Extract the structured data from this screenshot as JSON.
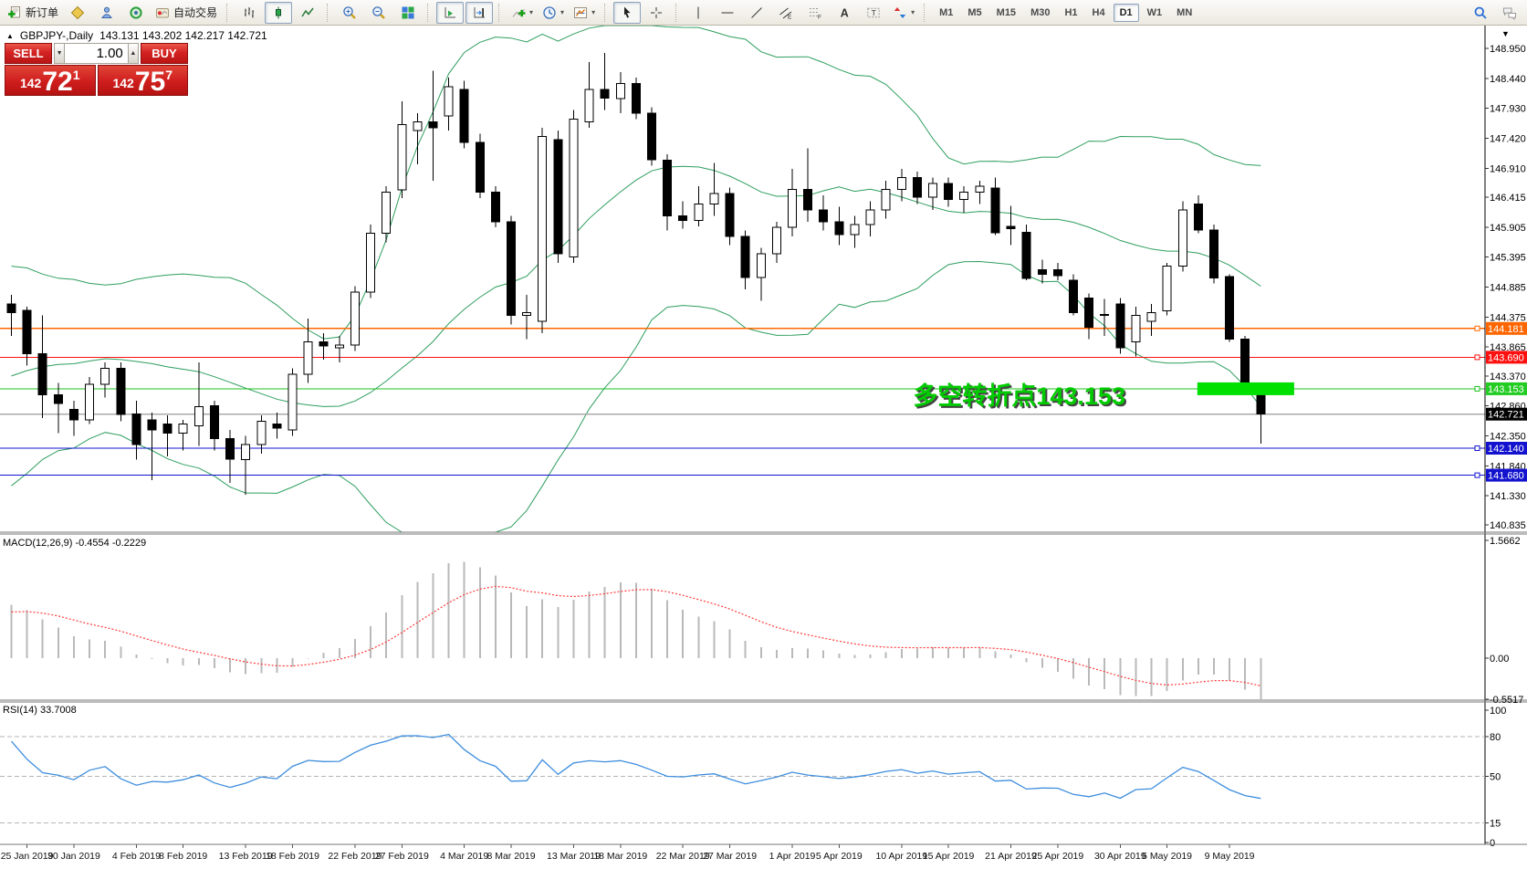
{
  "toolbar": {
    "caret_glyph": "▾",
    "groups": [
      {
        "items": [
          {
            "name": "new-order-button",
            "icon": "new-order-icon",
            "label": "新订单"
          },
          {
            "name": "metaeditor-button",
            "icon": "metaeditor-icon"
          },
          {
            "name": "profiles-button",
            "icon": "profile-icon"
          },
          {
            "name": "navigator-button",
            "icon": "navigator-icon"
          },
          {
            "name": "autotrading-button",
            "icon": "autotrading-icon",
            "label": "自动交易"
          }
        ]
      },
      {
        "items": [
          {
            "name": "bar-chart-button",
            "icon": "bar-chart-icon"
          },
          {
            "name": "candlestick-button",
            "icon": "candlestick-icon",
            "active": true
          },
          {
            "name": "line-chart-button",
            "icon": "line-chart-icon"
          }
        ]
      },
      {
        "items": [
          {
            "name": "zoom-in-button",
            "icon": "zoom-in-icon"
          },
          {
            "name": "zoom-out-button",
            "icon": "zoom-out-icon"
          },
          {
            "name": "tile-windows-button",
            "icon": "tile-windows-icon"
          }
        ]
      },
      {
        "items": [
          {
            "name": "auto-scroll-button",
            "icon": "auto-scroll-icon",
            "active": true
          },
          {
            "name": "chart-shift-button",
            "icon": "chart-shift-icon",
            "active": true
          }
        ]
      },
      {
        "items": [
          {
            "name": "indicators-button",
            "icon": "indicators-icon",
            "caret": true
          },
          {
            "name": "periods-button",
            "icon": "period-icon",
            "caret": true
          },
          {
            "name": "templates-button",
            "icon": "template-icon",
            "caret": true
          }
        ]
      },
      {
        "items": [
          {
            "name": "cursor-button",
            "icon": "cursor-icon",
            "active": true
          },
          {
            "name": "crosshair-button",
            "icon": "crosshair-icon"
          }
        ]
      },
      {
        "items": [
          {
            "name": "vertical-line-button",
            "icon": "vline-icon"
          },
          {
            "name": "horizontal-line-button",
            "icon": "hline-icon"
          },
          {
            "name": "trendline-button",
            "icon": "trendline-icon"
          },
          {
            "name": "channel-button",
            "icon": "channel-icon"
          },
          {
            "name": "fibonacci-button",
            "icon": "fibo-icon"
          },
          {
            "name": "text-button",
            "icon": "text-icon"
          },
          {
            "name": "text-label-button",
            "icon": "label-icon"
          },
          {
            "name": "arrows-button",
            "icon": "arrows-icon",
            "caret": true
          }
        ]
      }
    ],
    "timeframes": {
      "items": [
        "M1",
        "M5",
        "M15",
        "M30",
        "H1",
        "H4",
        "D1",
        "W1",
        "MN"
      ],
      "active": "D1"
    },
    "right_items": [
      {
        "name": "search-button",
        "icon": "search-icon"
      },
      {
        "name": "chat-button",
        "icon": "chat-icon"
      }
    ]
  },
  "chart_header": {
    "collapse_marker": "▲",
    "symbol": "GBPJPY-,Daily",
    "ohlc": "143.131 143.202 142.217 142.721"
  },
  "trade_panel": {
    "sell_label": "SELL",
    "buy_label": "BUY",
    "volume": "1.00",
    "vol_down_glyph": "▼",
    "vol_up_glyph": "▲",
    "sell_price": {
      "prefix": "142",
      "big": "72",
      "sup": "1"
    },
    "buy_price": {
      "prefix": "142",
      "big": "75",
      "sup": "7"
    }
  },
  "chart_data": {
    "type": "candlestick",
    "symbol": "GBPJPY-",
    "period": "Daily",
    "current_bar": {
      "open": 143.131,
      "high": 143.202,
      "low": 142.217,
      "close": 142.721
    },
    "y_range": [
      140.71,
      149.34
    ],
    "price_ticks": [
      "148.950",
      "148.440",
      "147.930",
      "147.420",
      "146.910",
      "146.415",
      "145.905",
      "145.395",
      "144.885",
      "144.375",
      "143.865",
      "143.370",
      "142.860",
      "142.350",
      "141.840",
      "141.330",
      "140.835"
    ],
    "levels": [
      {
        "label": "144.181",
        "price": 144.181,
        "color": "#FF6600",
        "bg": "#FF6600"
      },
      {
        "label": "143.690",
        "price": 143.69,
        "color": "#FE1010",
        "bg": "#FE1010"
      },
      {
        "label": "143.153",
        "price": 143.153,
        "color": "#1FC11F",
        "bg": "#22CC22"
      },
      {
        "label": "142.721",
        "price": 142.721,
        "color": "#ABABAB",
        "bg": "#000000",
        "current": true
      },
      {
        "label": "142.140",
        "price": 142.14,
        "color": "#1313CF",
        "bg": "#1313CF"
      },
      {
        "label": "141.680",
        "price": 141.68,
        "color": "#1313CF",
        "bg": "#1313CF"
      }
    ],
    "scroll_marker": "▼",
    "pre_closes": [
      141.6,
      141.9,
      141.75,
      142.1,
      142.4,
      142.3,
      142.7,
      143.0,
      142.85,
      143.2,
      143.5,
      143.35,
      143.7,
      144.0,
      143.85,
      144.2,
      144.5,
      144.35,
      144.6,
      144.7
    ],
    "candles": [
      [
        144.6,
        144.75,
        144.05,
        144.45
      ],
      [
        144.49,
        144.55,
        143.55,
        143.75
      ],
      [
        143.75,
        144.4,
        142.65,
        143.05
      ],
      [
        143.05,
        143.25,
        142.4,
        142.9
      ],
      [
        142.8,
        142.95,
        142.35,
        142.62
      ],
      [
        142.62,
        143.35,
        142.55,
        143.23
      ],
      [
        143.23,
        143.6,
        143.0,
        143.5
      ],
      [
        143.5,
        143.6,
        142.6,
        142.72
      ],
      [
        142.72,
        142.95,
        141.95,
        142.2
      ],
      [
        142.62,
        142.75,
        141.6,
        142.45
      ],
      [
        142.55,
        142.7,
        142.0,
        142.4
      ],
      [
        142.4,
        142.62,
        142.1,
        142.55
      ],
      [
        142.52,
        143.6,
        142.18,
        142.85
      ],
      [
        142.86,
        142.95,
        142.1,
        142.3
      ],
      [
        142.3,
        142.45,
        141.55,
        141.95
      ],
      [
        141.95,
        142.35,
        141.35,
        142.2
      ],
      [
        142.2,
        142.7,
        142.05,
        142.6
      ],
      [
        142.55,
        142.75,
        142.3,
        142.48
      ],
      [
        142.45,
        143.5,
        142.35,
        143.4
      ],
      [
        143.4,
        144.35,
        143.25,
        143.95
      ],
      [
        143.95,
        144.1,
        143.65,
        143.88
      ],
      [
        143.85,
        144.05,
        143.6,
        143.9
      ],
      [
        143.9,
        144.9,
        143.8,
        144.8
      ],
      [
        144.8,
        145.95,
        144.7,
        145.8
      ],
      [
        145.8,
        146.6,
        145.65,
        146.5
      ],
      [
        146.54,
        148.05,
        146.4,
        147.65
      ],
      [
        147.55,
        147.85,
        146.98,
        147.7
      ],
      [
        147.7,
        148.57,
        146.7,
        147.6
      ],
      [
        147.8,
        148.45,
        147.55,
        148.3
      ],
      [
        148.25,
        148.4,
        147.25,
        147.35
      ],
      [
        147.35,
        147.5,
        146.4,
        146.5
      ],
      [
        146.5,
        146.6,
        145.9,
        146.0
      ],
      [
        146.0,
        146.1,
        144.25,
        144.4
      ],
      [
        144.4,
        144.75,
        144.0,
        144.45
      ],
      [
        144.3,
        147.6,
        144.1,
        147.45
      ],
      [
        147.4,
        147.55,
        145.3,
        145.45
      ],
      [
        145.4,
        147.9,
        145.3,
        147.75
      ],
      [
        147.7,
        148.72,
        147.6,
        148.25
      ],
      [
        148.25,
        148.87,
        147.9,
        148.1
      ],
      [
        148.1,
        148.55,
        147.85,
        148.35
      ],
      [
        148.35,
        148.45,
        147.75,
        147.85
      ],
      [
        147.85,
        147.95,
        146.95,
        147.05
      ],
      [
        147.05,
        147.15,
        145.85,
        146.1
      ],
      [
        146.1,
        146.35,
        145.88,
        146.02
      ],
      [
        146.02,
        146.6,
        145.92,
        146.3
      ],
      [
        146.3,
        147.0,
        146.1,
        146.48
      ],
      [
        146.48,
        146.58,
        145.6,
        145.75
      ],
      [
        145.75,
        145.85,
        144.85,
        145.05
      ],
      [
        145.05,
        145.55,
        144.65,
        145.45
      ],
      [
        145.45,
        146.0,
        145.3,
        145.9
      ],
      [
        145.9,
        146.9,
        145.75,
        146.55
      ],
      [
        146.55,
        147.25,
        146.0,
        146.2
      ],
      [
        146.2,
        146.45,
        145.85,
        146.0
      ],
      [
        146.0,
        146.25,
        145.6,
        145.78
      ],
      [
        145.78,
        146.1,
        145.55,
        145.95
      ],
      [
        145.95,
        146.35,
        145.75,
        146.2
      ],
      [
        146.2,
        146.7,
        146.05,
        146.55
      ],
      [
        146.55,
        146.9,
        146.35,
        146.75
      ],
      [
        146.75,
        146.85,
        146.3,
        146.42
      ],
      [
        146.42,
        146.75,
        146.2,
        146.65
      ],
      [
        146.65,
        146.75,
        146.25,
        146.38
      ],
      [
        146.38,
        146.6,
        146.15,
        146.5
      ],
      [
        146.5,
        146.7,
        146.3,
        146.6
      ],
      [
        146.57,
        146.75,
        145.77,
        145.81
      ],
      [
        145.92,
        146.27,
        145.6,
        145.88
      ],
      [
        145.82,
        145.95,
        145.0,
        145.03
      ],
      [
        145.18,
        145.35,
        144.95,
        145.1
      ],
      [
        145.18,
        145.3,
        145.0,
        145.08
      ],
      [
        145.0,
        145.1,
        144.4,
        144.45
      ],
      [
        144.7,
        144.78,
        144.0,
        144.2
      ],
      [
        144.4,
        144.68,
        144.05,
        144.42
      ],
      [
        144.6,
        144.7,
        143.75,
        143.85
      ],
      [
        143.95,
        144.55,
        143.7,
        144.4
      ],
      [
        144.3,
        144.6,
        144.05,
        144.45
      ],
      [
        144.48,
        145.3,
        144.4,
        145.24
      ],
      [
        145.24,
        146.35,
        145.15,
        146.2
      ],
      [
        146.3,
        146.45,
        145.8,
        145.86
      ],
      [
        145.86,
        145.95,
        144.95,
        145.04
      ],
      [
        145.06,
        145.1,
        143.95,
        144.0
      ],
      [
        144.0,
        144.05,
        143.15,
        143.17
      ],
      [
        143.131,
        143.202,
        142.217,
        142.721
      ]
    ],
    "date_labels": [
      [
        1,
        "25 Jan 2019"
      ],
      [
        4,
        "30 Jan 2019"
      ],
      [
        8,
        "4 Feb 2019"
      ],
      [
        11,
        "8 Feb 2019"
      ],
      [
        15,
        "13 Feb 2019"
      ],
      [
        18,
        "18 Feb 2019"
      ],
      [
        22,
        "22 Feb 2019"
      ],
      [
        25,
        "27 Feb 2019"
      ],
      [
        29,
        "4 Mar 2019"
      ],
      [
        32,
        "8 Mar 2019"
      ],
      [
        36,
        "13 Mar 2019"
      ],
      [
        39,
        "18 Mar 2019"
      ],
      [
        43,
        "22 Mar 2019"
      ],
      [
        46,
        "27 Mar 2019"
      ],
      [
        50,
        "1 Apr 2019"
      ],
      [
        53,
        "5 Apr 2019"
      ],
      [
        57,
        "10 Apr 2019"
      ],
      [
        60,
        "15 Apr 2019"
      ],
      [
        64,
        "21 Apr 2019"
      ],
      [
        67,
        "25 Apr 2019"
      ],
      [
        71,
        "30 Apr 2019"
      ],
      [
        74,
        "5 May 2019"
      ],
      [
        78,
        "9 May 2019"
      ]
    ],
    "bollinger": {
      "period": 20,
      "deviation": 2,
      "color": "#2E9E5E"
    },
    "macd": {
      "label": "MACD(12,26,9)",
      "values": "-0.4554 -0.2229",
      "fast": 12,
      "slow": 26,
      "signal": 9,
      "ticks": [
        "1.5662",
        "0.00",
        "-0.5517"
      ],
      "tick_values": [
        1.5662,
        0,
        -0.5517
      ],
      "histogram_color": "#b9b9b9",
      "signal_color": "#FF3B3B"
    },
    "rsi": {
      "label": "RSI(14)",
      "value": "33.7008",
      "period": 14,
      "color": "#3E8EDE",
      "ticks": [
        {
          "v": 100,
          "label": "100",
          "dashed": false
        },
        {
          "v": 80,
          "label": "80",
          "dashed": true
        },
        {
          "v": 50,
          "label": "50",
          "dashed": true
        },
        {
          "v": 15,
          "label": "15",
          "dashed": true
        },
        {
          "v": 0,
          "label": "0",
          "dashed": false
        }
      ]
    },
    "annotation": {
      "text": "多空转折点143.153",
      "anchor_index": 58,
      "anchor_price": 142.89,
      "color": "#00CC00",
      "shadow": "#454545",
      "size": 27
    },
    "highlight": {
      "from_index": 76.2,
      "to_index": 82.4,
      "price": 143.153,
      "half_height": 7,
      "color": "#00E000"
    }
  }
}
